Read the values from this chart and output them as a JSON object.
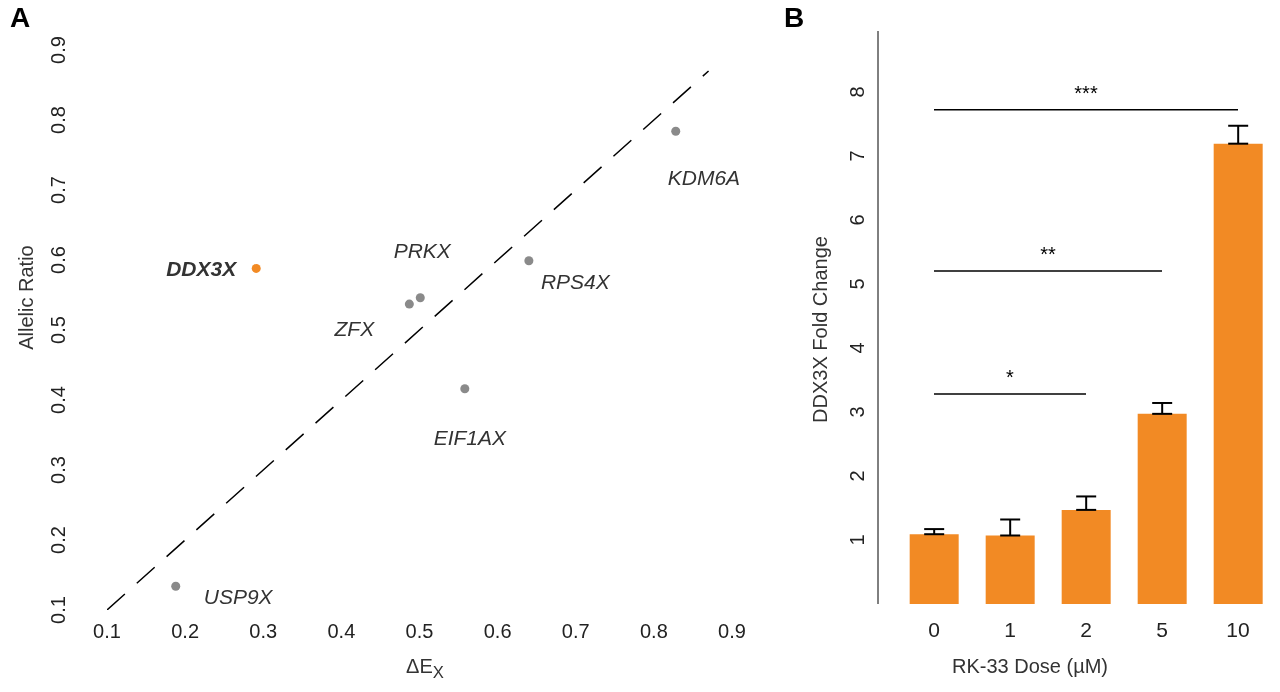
{
  "chart_data": [
    {
      "type": "scatter",
      "title": "A",
      "xlabel": "ΔE$_{X}$",
      "ylabel": "Allelic Ratio",
      "xlim": [
        0.1,
        0.9
      ],
      "xticks": [
        0.1,
        0.2,
        0.3,
        0.4,
        0.5,
        0.6,
        0.7,
        0.8,
        0.9
      ],
      "ylim": [
        0.1,
        0.9
      ],
      "yticks": [
        0.1,
        0.2,
        0.3,
        0.4,
        0.5,
        0.6,
        0.7,
        0.8,
        0.9
      ],
      "series": [
        {
          "color": "#f28a24",
          "marker": "circle",
          "x": [
            0.291
          ],
          "values": [
            0.588
          ]
        },
        {
          "color": "#8a8a8a",
          "marker": "circle",
          "x": [
            0.188,
            0.487,
            0.501,
            0.558,
            0.64,
            0.828
          ],
          "values": [
            0.134,
            0.537,
            0.546,
            0.416,
            0.599,
            0.784
          ]
        },
        {
          "type": "line",
          "color": "#000000",
          "line_style": "dashed",
          "marker": "none",
          "x": [
            0.1,
            0.87
          ],
          "values": [
            0.1,
            0.87
          ]
        }
      ],
      "annotations": [
        {
          "text": "DDX3X",
          "x": 0.291,
          "y": 0.588
        },
        {
          "text": "USP9X",
          "x": 0.188,
          "y": 0.134
        },
        {
          "text": "ZFX",
          "x": 0.487,
          "y": 0.537
        },
        {
          "text": "PRKX",
          "x": 0.501,
          "y": 0.546
        },
        {
          "text": "EIF1AX",
          "x": 0.558,
          "y": 0.416
        },
        {
          "text": "RPS4X",
          "x": 0.64,
          "y": 0.599
        },
        {
          "text": "KDM6A",
          "x": 0.828,
          "y": 0.784
        }
      ]
    },
    {
      "type": "bar",
      "title": "B",
      "xlabel": "RK-33 Dose (µM)",
      "ylabel": "DDX3X Fold Change",
      "categories": [
        "0",
        "1",
        "2",
        "5",
        "10"
      ],
      "values": [
        1.09,
        1.07,
        1.47,
        2.97,
        7.19
      ],
      "errors": [
        [
          1.09,
          1.17
        ],
        [
          1.07,
          1.32
        ],
        [
          1.47,
          1.68
        ],
        [
          2.97,
          3.14
        ],
        [
          7.19,
          7.47
        ]
      ],
      "color": "#f28a24",
      "ylim": [
        0,
        8.95
      ],
      "yticks": [
        1,
        2,
        3,
        4,
        5,
        6,
        7,
        8
      ],
      "ref_lines": [
        {
          "axis": "y",
          "value": 3.28,
          "label": "*",
          "color": "#000000"
        },
        {
          "axis": "y",
          "value": 5.2,
          "label": "**",
          "color": "#000000"
        },
        {
          "axis": "y",
          "value": 7.72,
          "label": "***",
          "color": "#000000"
        }
      ]
    }
  ]
}
